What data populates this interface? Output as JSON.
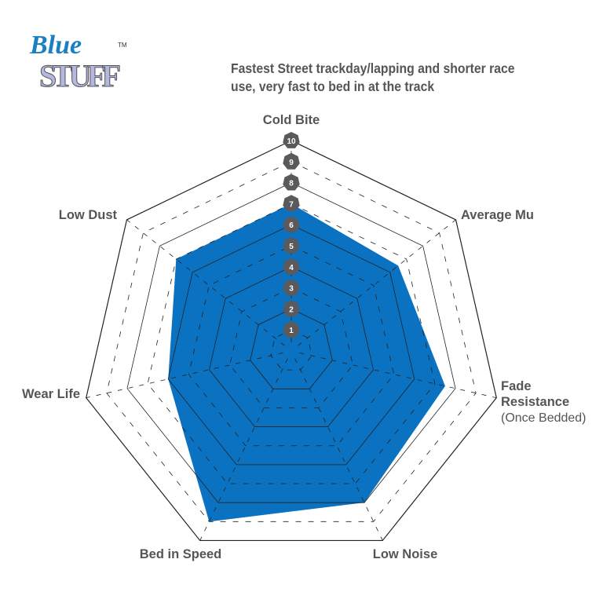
{
  "logo": {
    "text_top": "Blue",
    "text_bottom": "STUFF",
    "trademark": "TM",
    "colors": {
      "blue": "#1b7fc4",
      "lavender": "#b3b8e0"
    }
  },
  "chart_data": {
    "type": "radar",
    "title": "Fastest Street trackday/lapping and shorter race use, very fast to bed in at the track",
    "axes": [
      {
        "label": "Cold Bite",
        "sublabel": ""
      },
      {
        "label": "Average Mu",
        "sublabel": ""
      },
      {
        "label": "Fade Resistance",
        "sublabel": "(Once Bedded)"
      },
      {
        "label": "Low Noise",
        "sublabel": ""
      },
      {
        "label": "Bed in Speed",
        "sublabel": ""
      },
      {
        "label": "Wear Life",
        "sublabel": ""
      },
      {
        "label": "Low Dust",
        "sublabel": ""
      }
    ],
    "values": [
      7,
      6.5,
      7.5,
      8,
      9,
      6,
      7
    ],
    "range": [
      0,
      10
    ],
    "scale_ticks": [
      "1",
      "2",
      "3",
      "4",
      "5",
      "6",
      "7",
      "8",
      "9",
      "10"
    ],
    "fill_color": "#0a72c0",
    "grid_color": "#222222",
    "tick_marker_color": "#5a5a5c",
    "label_color": "#555555"
  }
}
